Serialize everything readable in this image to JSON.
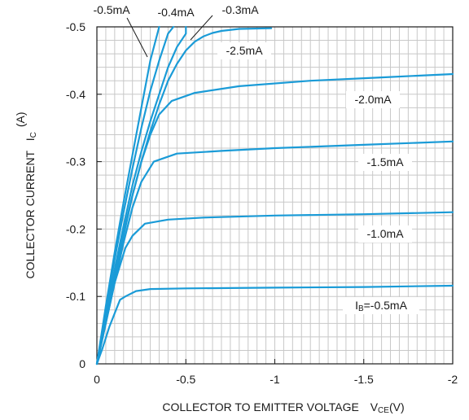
{
  "chart_data": {
    "type": "line",
    "xlabel": "COLLECTOR TO EMITTER VOLTAGE",
    "xlabel_symbol": "V",
    "xlabel_sub": "CE",
    "xlabel_unit": "(V)",
    "ylabel": "COLLECTOR CURRENT",
    "ylabel_symbol": "I",
    "ylabel_sub": "C",
    "ylabel_unit": "(A)",
    "xlim": [
      0,
      -2
    ],
    "ylim": [
      0,
      -0.5
    ],
    "x_ticks": [
      0,
      -0.5,
      -1,
      -1.5,
      -2
    ],
    "x_tick_labels": [
      "0",
      "-0.5",
      "-1",
      "-1.5",
      "-2"
    ],
    "y_ticks": [
      0,
      -0.1,
      -0.2,
      -0.3,
      -0.4,
      -0.5
    ],
    "y_tick_labels": [
      "0",
      "-0.1",
      "-0.2",
      "-0.3",
      "-0.4",
      "-0.5"
    ],
    "x_minor_step": -0.05,
    "y_minor_step": -0.02,
    "grid": true,
    "line_color": "#1a9bd7",
    "series": [
      {
        "name": "IB=-0.5mA",
        "label": "-0.5mA",
        "label_prefix": "I",
        "label_sub": "B",
        "label_eq": "=",
        "x": [
          0,
          -0.03,
          -0.07,
          -0.13,
          -0.16,
          -0.22,
          -0.3,
          -0.5,
          -1.0,
          -1.5,
          -2.0
        ],
        "y": [
          0,
          -0.022,
          -0.055,
          -0.095,
          -0.1,
          -0.108,
          -0.111,
          -0.112,
          -0.113,
          -0.114,
          -0.116
        ]
      },
      {
        "name": "-1.0mA",
        "label": "-1.0mA",
        "x": [
          0,
          -0.05,
          -0.1,
          -0.16,
          -0.2,
          -0.27,
          -0.4,
          -0.6,
          -1.0,
          -1.5,
          -2.0
        ],
        "y": [
          0,
          -0.06,
          -0.12,
          -0.172,
          -0.19,
          -0.208,
          -0.214,
          -0.217,
          -0.22,
          -0.222,
          -0.225
        ]
      },
      {
        "name": "-1.5mA",
        "label": "-1.5mA",
        "x": [
          0,
          -0.05,
          -0.1,
          -0.15,
          -0.2,
          -0.25,
          -0.32,
          -0.45,
          -0.7,
          -1.0,
          -1.5,
          -2.0
        ],
        "y": [
          0,
          -0.06,
          -0.12,
          -0.18,
          -0.232,
          -0.27,
          -0.3,
          -0.312,
          -0.316,
          -0.32,
          -0.325,
          -0.33
        ]
      },
      {
        "name": "-2.0mA",
        "label": "-2.0mA",
        "x": [
          0,
          -0.05,
          -0.1,
          -0.15,
          -0.2,
          -0.25,
          -0.3,
          -0.35,
          -0.42,
          -0.55,
          -0.8,
          -1.2,
          -1.6,
          -2.0
        ],
        "y": [
          0,
          -0.065,
          -0.13,
          -0.19,
          -0.25,
          -0.3,
          -0.34,
          -0.37,
          -0.39,
          -0.402,
          -0.412,
          -0.42,
          -0.425,
          -0.43
        ]
      },
      {
        "name": "-2.5mA",
        "label": "-2.5mA",
        "x": [
          0,
          -0.05,
          -0.1,
          -0.15,
          -0.2,
          -0.25,
          -0.3,
          -0.35,
          -0.4,
          -0.45,
          -0.5,
          -0.55,
          -0.6,
          -0.65,
          -0.7,
          -0.8,
          -0.98
        ],
        "y": [
          0,
          -0.07,
          -0.135,
          -0.195,
          -0.25,
          -0.3,
          -0.345,
          -0.385,
          -0.42,
          -0.445,
          -0.465,
          -0.478,
          -0.486,
          -0.491,
          -0.494,
          -0.497,
          -0.498
        ]
      },
      {
        "name": "-0.3mA",
        "label": "-0.3mA",
        "x": [
          0,
          -0.05,
          -0.1,
          -0.15,
          -0.2,
          -0.25,
          -0.3,
          -0.35,
          -0.4,
          -0.45,
          -0.5,
          -0.5
        ],
        "y": [
          0,
          -0.072,
          -0.14,
          -0.205,
          -0.265,
          -0.315,
          -0.36,
          -0.4,
          -0.44,
          -0.47,
          -0.49,
          -0.5
        ]
      },
      {
        "name": "-0.4mA",
        "label": "-0.4mA",
        "x": [
          0,
          -0.05,
          -0.1,
          -0.15,
          -0.2,
          -0.25,
          -0.3,
          -0.35,
          -0.4,
          -0.43
        ],
        "y": [
          0,
          -0.08,
          -0.155,
          -0.225,
          -0.29,
          -0.35,
          -0.405,
          -0.45,
          -0.49,
          -0.5
        ]
      },
      {
        "name": "-0.5mA",
        "label": "-0.5mA",
        "x": [
          0,
          -0.05,
          -0.1,
          -0.15,
          -0.2,
          -0.25,
          -0.3,
          -0.35
        ],
        "y": [
          0,
          -0.085,
          -0.165,
          -0.24,
          -0.31,
          -0.38,
          -0.45,
          -0.5
        ]
      }
    ]
  }
}
